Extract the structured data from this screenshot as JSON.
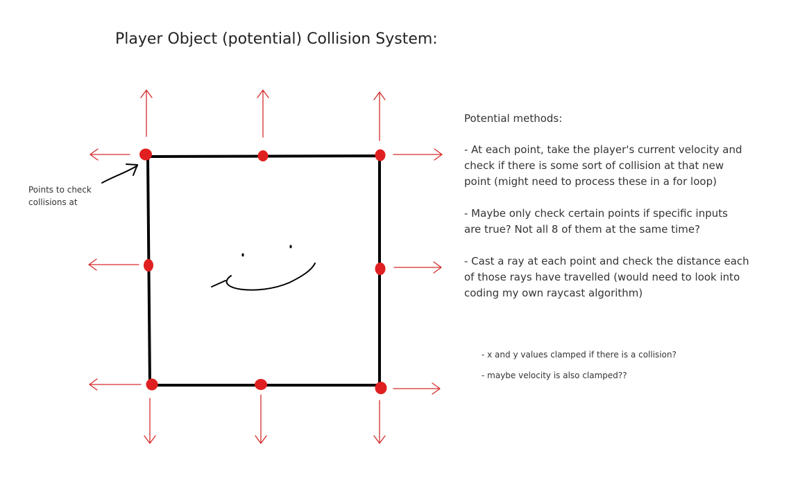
{
  "title": "Player Object (potential) Collision System:",
  "points_label": [
    "Points to check",
    "collisions at"
  ],
  "notes": {
    "heading": "Potential methods:",
    "bullets": [
      [
        " - At each point, take the player's current velocity and",
        "check if there is some sort of collision at that new",
        "point (might need to process these in a for loop)"
      ],
      [
        " - Maybe only check certain points if specific inputs",
        "are true? Not all 8 of them at the same time?"
      ],
      [
        " - Cast a ray at each point and check the distance each",
        "of those rays have travelled (would need to look into",
        "coding my own raycast algorithm)"
      ]
    ]
  },
  "small_notes": [
    "- x and y values clamped if there is a collision?",
    "- maybe velocity is also clamped??"
  ],
  "colors": {
    "box": "#000000",
    "point": "#e02020",
    "arrow": "#d42a2a",
    "text": "#333333"
  },
  "icons": [
    "red-point-marker",
    "arrow-up-icon",
    "arrow-down-icon",
    "arrow-left-icon",
    "arrow-right-icon",
    "pointer-arrow-icon",
    "smiley-face-doodle"
  ]
}
